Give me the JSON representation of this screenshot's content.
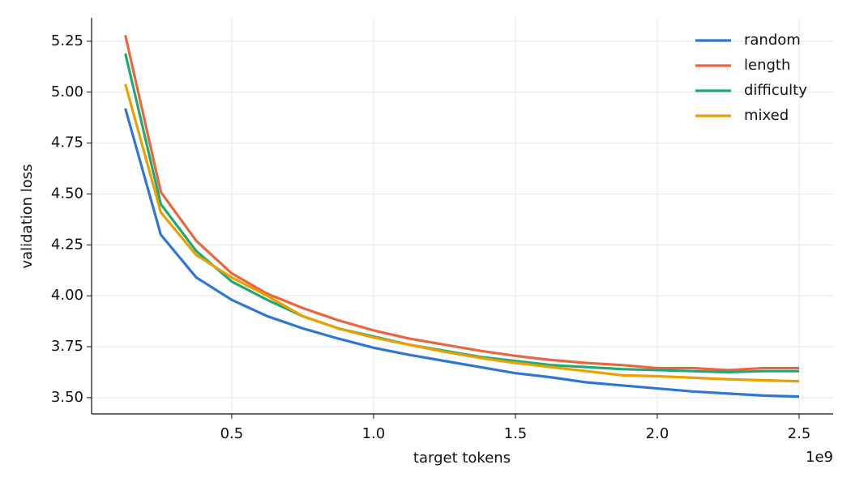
{
  "chart_data": {
    "type": "line",
    "x_label": "target tokens",
    "y_label": "validation loss",
    "x_offset_label": "1e9",
    "x": [
      0.125,
      0.25,
      0.375,
      0.5,
      0.625,
      0.75,
      0.875,
      1.0,
      1.125,
      1.25,
      1.375,
      1.5,
      1.625,
      1.75,
      1.875,
      2.0,
      2.125,
      2.25,
      2.375,
      2.5
    ],
    "series": [
      {
        "name": "random",
        "color": "#2f77d4",
        "values": [
          4.92,
          4.3,
          4.09,
          3.98,
          3.9,
          3.84,
          3.79,
          3.745,
          3.71,
          3.68,
          3.65,
          3.62,
          3.6,
          3.575,
          3.56,
          3.545,
          3.53,
          3.52,
          3.51,
          3.505
        ]
      },
      {
        "name": "length",
        "color": "#e8673f",
        "values": [
          5.28,
          4.51,
          4.27,
          4.11,
          4.01,
          3.94,
          3.88,
          3.83,
          3.79,
          3.76,
          3.73,
          3.705,
          3.685,
          3.67,
          3.66,
          3.645,
          3.645,
          3.635,
          3.645,
          3.645
        ]
      },
      {
        "name": "difficulty",
        "color": "#22a877",
        "values": [
          5.19,
          4.45,
          4.22,
          4.07,
          3.98,
          3.9,
          3.84,
          3.8,
          3.76,
          3.73,
          3.7,
          3.68,
          3.66,
          3.65,
          3.64,
          3.635,
          3.63,
          3.625,
          3.63,
          3.63
        ]
      },
      {
        "name": "mixed",
        "color": "#eca000",
        "values": [
          5.04,
          4.41,
          4.2,
          4.09,
          4.0,
          3.9,
          3.84,
          3.795,
          3.76,
          3.725,
          3.695,
          3.67,
          3.65,
          3.63,
          3.61,
          3.605,
          3.598,
          3.59,
          3.585,
          3.58
        ]
      }
    ],
    "xlim": [
      0.006,
      2.62
    ],
    "ylim": [
      3.42,
      5.365
    ],
    "xticks": [
      0.5,
      {
        "value": 1,
        "label": "1.0"
      },
      1.5,
      {
        "value": 2,
        "label": "2.0"
      },
      2.5
    ],
    "yticks": [
      {
        "value": 3.5,
        "label": "3.50"
      },
      3.75,
      {
        "value": 4,
        "label": "4.00"
      },
      4.25,
      {
        "value": 4.5,
        "label": "4.50"
      },
      4.75,
      {
        "value": 5,
        "label": "5.00"
      },
      5.25
    ],
    "grid": true,
    "legend": "upper right"
  }
}
